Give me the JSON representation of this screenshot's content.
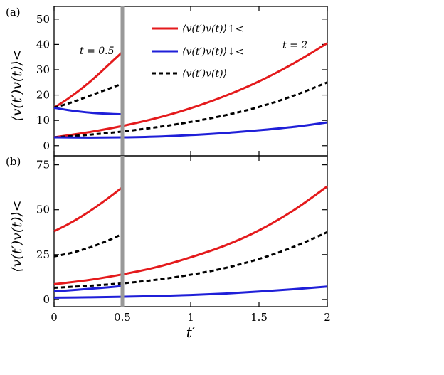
{
  "chart_data": [
    {
      "panel": "(a)",
      "type": "line",
      "ylabel": "⟨v(t′)v(t)⟩<",
      "xlim": [
        0,
        2
      ],
      "ylim": [
        -4,
        55
      ],
      "yticks": [
        0,
        10,
        20,
        30,
        40,
        50
      ],
      "annotations": [
        "t = 0.5",
        "t = 2"
      ],
      "legend": {
        "placement": "top-center",
        "entries": [
          {
            "label": "⟨v(t′)v(t)⟩↑<",
            "color": "#e41a1c",
            "style": "solid"
          },
          {
            "label": "⟨v(t′)v(t)⟩↓<",
            "color": "#1f1fd8",
            "style": "solid"
          },
          {
            "label": "⟨v(t′)v(t)⟩",
            "color": "#000000",
            "style": "dashed"
          }
        ]
      },
      "series": [
        {
          "name": "⟨v(t′)v(t)⟩↑<",
          "group": "t=0.5",
          "color": "#e41a1c",
          "dash": false,
          "x": [
            0,
            0.1,
            0.2,
            0.3,
            0.4,
            0.5
          ],
          "y": [
            15,
            18.5,
            22.5,
            27,
            32,
            37
          ]
        },
        {
          "name": "⟨v(t′)v(t)⟩",
          "group": "t=0.5",
          "color": "#000000",
          "dash": true,
          "x": [
            0,
            0.1,
            0.2,
            0.3,
            0.4,
            0.5
          ],
          "y": [
            15,
            16.6,
            18.5,
            20.5,
            22.5,
            24.5
          ]
        },
        {
          "name": "⟨v(t′)v(t)⟩↓<",
          "group": "t=0.5",
          "color": "#1f1fd8",
          "dash": false,
          "x": [
            0,
            0.1,
            0.2,
            0.3,
            0.4,
            0.5
          ],
          "y": [
            15,
            14.1,
            13.4,
            12.9,
            12.6,
            12.4
          ]
        },
        {
          "name": "⟨v(t′)v(t)⟩↑<",
          "group": "t=2",
          "color": "#e41a1c",
          "dash": false,
          "x": [
            0,
            0.25,
            0.5,
            0.75,
            1,
            1.25,
            1.5,
            1.75,
            2
          ],
          "y": [
            3.3,
            5.3,
            7.8,
            10.9,
            14.8,
            19.6,
            25.4,
            32.4,
            40.5
          ]
        },
        {
          "name": "⟨v(t′)v(t)⟩",
          "group": "t=2",
          "color": "#000000",
          "dash": true,
          "x": [
            0,
            0.25,
            0.5,
            0.75,
            1,
            1.25,
            1.5,
            1.75,
            2
          ],
          "y": [
            3.3,
            4.3,
            5.6,
            7.3,
            9.4,
            12.0,
            15.3,
            19.7,
            25.0
          ]
        },
        {
          "name": "⟨v(t′)v(t)⟩↓<",
          "group": "t=2",
          "color": "#1f1fd8",
          "dash": false,
          "x": [
            0,
            0.25,
            0.5,
            0.75,
            1,
            1.25,
            1.5,
            1.75,
            2
          ],
          "y": [
            3.3,
            3.2,
            3.3,
            3.6,
            4.2,
            5.0,
            6.1,
            7.4,
            9.2
          ]
        }
      ]
    },
    {
      "panel": "(b)",
      "type": "line",
      "ylabel": "⟨v(t′)v(t)⟩<",
      "xlabel": "t′",
      "xlim": [
        0,
        2
      ],
      "ylim": [
        -4,
        80
      ],
      "xticks": [
        0,
        0.5,
        1,
        1.5,
        2
      ],
      "xticklabels": [
        "0",
        "0.5",
        "1",
        "1.5",
        "2"
      ],
      "yticks": [
        0,
        25,
        50,
        75
      ],
      "series": [
        {
          "name": "⟨v(t′)v(t)⟩↑<",
          "group": "t=0.5",
          "color": "#e41a1c",
          "dash": false,
          "x": [
            0,
            0.1,
            0.2,
            0.3,
            0.4,
            0.5
          ],
          "y": [
            38,
            41.8,
            46.2,
            51.2,
            56.7,
            62.5
          ]
        },
        {
          "name": "⟨v(t′)v(t)⟩",
          "group": "t=0.5",
          "color": "#000000",
          "dash": true,
          "x": [
            0,
            0.1,
            0.2,
            0.3,
            0.4,
            0.5
          ],
          "y": [
            24,
            25.5,
            27.5,
            30,
            33,
            36.5
          ]
        },
        {
          "name": "⟨v(t′)v(t)⟩↓<",
          "group": "t=0.5",
          "color": "#1f1fd8",
          "dash": false,
          "x": [
            0,
            0.1,
            0.2,
            0.3,
            0.4,
            0.5
          ],
          "y": [
            4.5,
            5.0,
            5.6,
            6.2,
            6.8,
            7.5
          ]
        },
        {
          "name": "⟨v(t′)v(t)⟩↑<",
          "group": "t=2",
          "color": "#e41a1c",
          "dash": false,
          "x": [
            0,
            0.25,
            0.5,
            0.75,
            1,
            1.25,
            1.5,
            1.75,
            2
          ],
          "y": [
            8.5,
            10.8,
            14.0,
            18.0,
            23.5,
            30.0,
            38.5,
            49.5,
            63.0
          ]
        },
        {
          "name": "⟨v(t′)v(t)⟩",
          "group": "t=2",
          "color": "#000000",
          "dash": true,
          "x": [
            0,
            0.25,
            0.5,
            0.75,
            1,
            1.25,
            1.5,
            1.75,
            2
          ],
          "y": [
            6.5,
            7.6,
            9.0,
            11.0,
            13.8,
            17.5,
            22.6,
            29.2,
            37.5
          ]
        },
        {
          "name": "⟨v(t′)v(t)⟩↓<",
          "group": "t=2",
          "color": "#1f1fd8",
          "dash": false,
          "x": [
            0,
            0.25,
            0.5,
            0.75,
            1,
            1.25,
            1.5,
            1.75,
            2
          ],
          "y": [
            1.0,
            1.2,
            1.5,
            1.9,
            2.5,
            3.3,
            4.4,
            5.7,
            7.2
          ]
        }
      ]
    }
  ],
  "marker_line": {
    "x": 0.5,
    "color": "#999999"
  }
}
